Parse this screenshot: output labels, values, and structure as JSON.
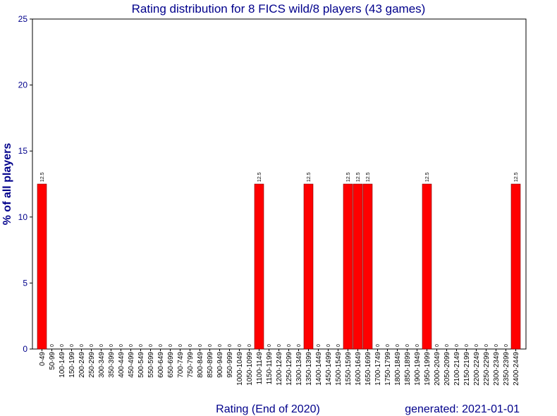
{
  "chart_data": {
    "type": "bar",
    "title": "Rating distribution for 8 FICS wild/8 players (43 games)",
    "xlabel": "Rating (End of 2020)",
    "ylabel": "% of all players",
    "footer": "generated: 2021-01-01",
    "ylim": [
      0,
      25
    ],
    "yticks": [
      "0",
      "5",
      "10",
      "15",
      "20",
      "25"
    ],
    "bar_color": "#ff0000",
    "categories": [
      "0-49",
      "50-99",
      "100-149",
      "150-199",
      "200-249",
      "250-299",
      "300-349",
      "350-399",
      "400-449",
      "450-499",
      "500-549",
      "550-599",
      "600-649",
      "650-699",
      "700-749",
      "750-799",
      "800-849",
      "850-899",
      "900-949",
      "950-999",
      "1000-1049",
      "1050-1099",
      "1100-1149",
      "1150-1199",
      "1200-1249",
      "1250-1299",
      "1300-1349",
      "1350-1399",
      "1400-1449",
      "1450-1499",
      "1500-1549",
      "1550-1599",
      "1600-1649",
      "1650-1699",
      "1700-1749",
      "1750-1799",
      "1800-1849",
      "1850-1899",
      "1900-1949",
      "1950-1999",
      "2000-2049",
      "2050-2099",
      "2100-2149",
      "2150-2199",
      "2200-2249",
      "2250-2299",
      "2300-2349",
      "2350-2399",
      "2400-2449"
    ],
    "values": [
      12.5,
      0,
      0,
      0,
      0,
      0,
      0,
      0,
      0,
      0,
      0,
      0,
      0,
      0,
      0,
      0,
      0,
      0,
      0,
      0,
      0,
      0,
      12.5,
      0,
      0,
      0,
      0,
      12.5,
      0,
      0,
      0,
      12.5,
      12.5,
      12.5,
      0,
      0,
      0,
      0,
      0,
      12.5,
      0,
      0,
      0,
      0,
      0,
      0,
      0,
      0,
      12.5
    ],
    "value_labels": [
      "12.5",
      "0",
      "0",
      "0",
      "0",
      "0",
      "0",
      "0",
      "0",
      "0",
      "0",
      "0",
      "0",
      "0",
      "0",
      "0",
      "0",
      "0",
      "0",
      "0",
      "0",
      "0",
      "12.5",
      "0",
      "0",
      "0",
      "0",
      "12.5",
      "0",
      "0",
      "0",
      "12.5",
      "12.5",
      "12.5",
      "0",
      "0",
      "0",
      "0",
      "0",
      "12.5",
      "0",
      "0",
      "0",
      "0",
      "0",
      "0",
      "0",
      "0",
      "12.5"
    ]
  }
}
